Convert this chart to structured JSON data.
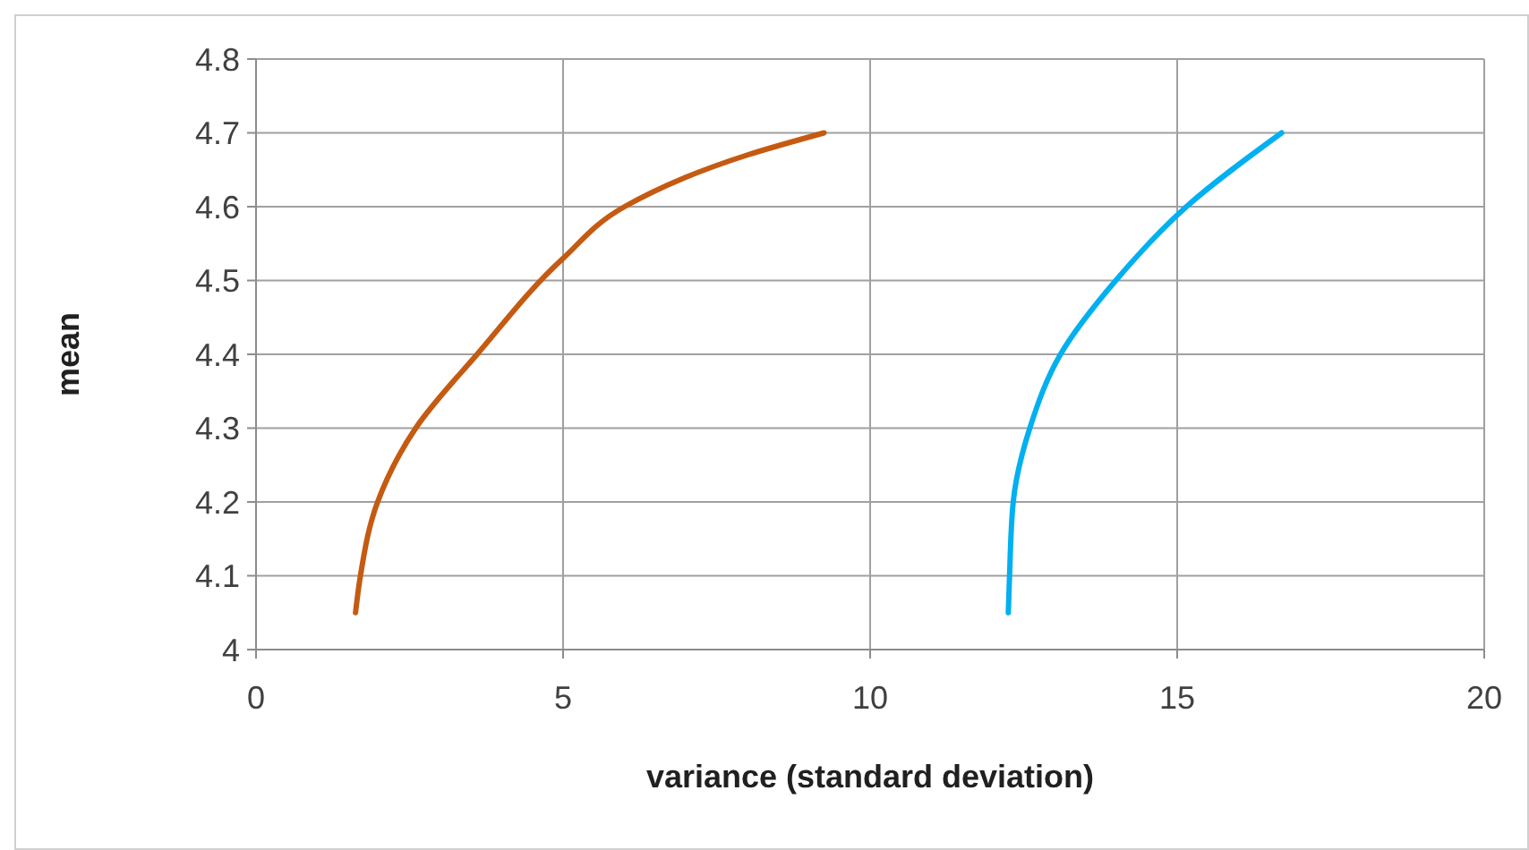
{
  "chart_data": {
    "type": "line",
    "xlabel": "variance (standard deviation)",
    "ylabel": "mean",
    "xlim": [
      0,
      20
    ],
    "xticks": [
      0,
      5,
      10,
      15,
      20
    ],
    "ylim": [
      4,
      4.8
    ],
    "yticks": [
      {
        "value": 4,
        "label": "4"
      },
      {
        "value": 4.1,
        "label": "4.1"
      },
      {
        "value": 4.2,
        "label": "4.2"
      },
      {
        "value": 4.3,
        "label": "4.3"
      },
      {
        "value": 4.4,
        "label": "4.4"
      },
      {
        "value": 4.5,
        "label": "4.5"
      },
      {
        "value": 4.6,
        "label": "4.6"
      },
      {
        "value": 4.7,
        "label": "4.7"
      },
      {
        "value": 4.8,
        "label": "4.8"
      }
    ],
    "grid": true,
    "marker": "none",
    "line_style": "solid",
    "series": [
      {
        "color": "#c55a11",
        "x": [
          1.62,
          1.7,
          1.98,
          2.6,
          3.6,
          5.0,
          6.0,
          8.0,
          9.25
        ],
        "values": [
          4.05,
          4.1,
          4.2,
          4.3,
          4.4,
          4.53,
          4.6,
          4.67,
          4.7
        ]
      },
      {
        "color": "#00b0f0",
        "x": [
          12.25,
          12.27,
          12.33,
          12.6,
          13.1,
          14.0,
          15.15,
          16.7
        ],
        "values": [
          4.05,
          4.1,
          4.2,
          4.3,
          4.4,
          4.5,
          4.6,
          4.7
        ]
      }
    ]
  }
}
